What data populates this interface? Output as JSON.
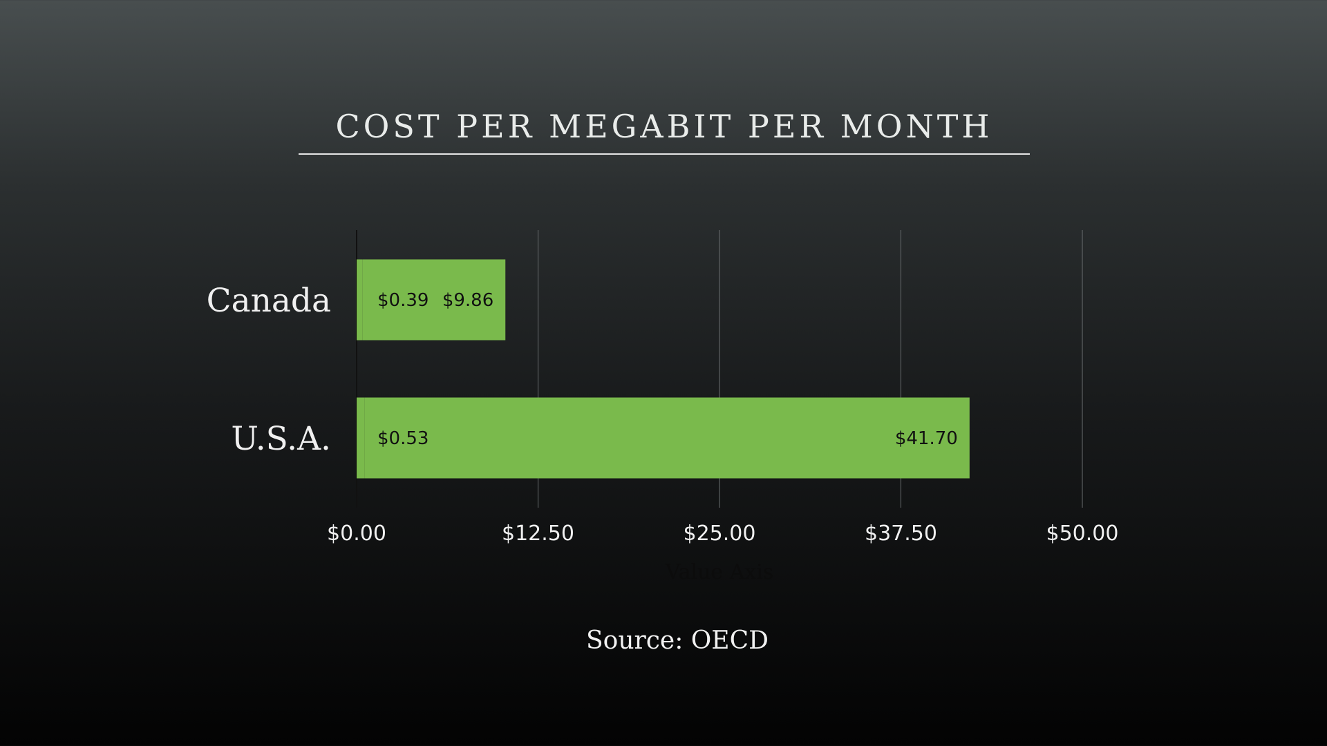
{
  "slide": {
    "title": "COST PER MEGABIT PER MONTH",
    "source": "Source: OECD"
  },
  "colors": {
    "bar": "#7aba4c",
    "text": "#f0f0f0",
    "grid": "#6a6e70",
    "label_dark": "#111111"
  },
  "chart_data": {
    "type": "bar",
    "orientation": "horizontal",
    "stacked": true,
    "categories": [
      "Canada",
      "U.S.A."
    ],
    "series": [
      {
        "values": [
          0.39,
          0.53
        ],
        "labels": [
          "$0.39",
          "$0.53"
        ]
      },
      {
        "values": [
          9.86,
          41.7
        ],
        "labels": [
          "$9.86",
          "$41.70"
        ]
      }
    ],
    "xlim": [
      0,
      50
    ],
    "ticks": [
      0,
      12.5,
      25,
      37.5,
      50
    ],
    "tick_labels": [
      "$0.00",
      "$12.50",
      "$25.00",
      "$37.50",
      "$50.00"
    ],
    "xlabel": "Value Axis",
    "ylabel": "",
    "grid": true,
    "legend": "none"
  }
}
